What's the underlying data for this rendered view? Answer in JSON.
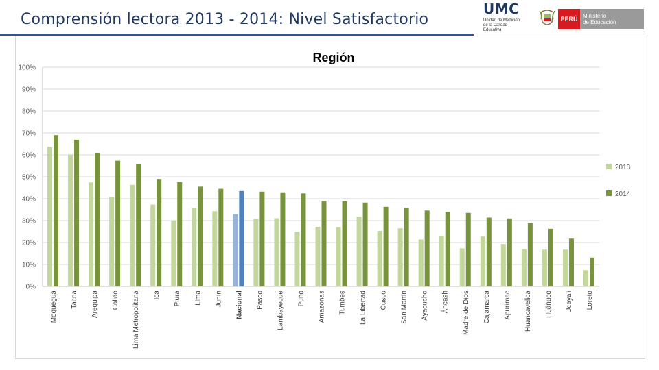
{
  "slide": {
    "title": "Comprensión lectora 2013 - 2014: Nivel Satisfactorio"
  },
  "logos": {
    "umc_word": "UMC",
    "umc_sub_lines": [
      "Unidad de Medición",
      "de la Calidad Educativa"
    ],
    "peru_label": "PERÚ",
    "ministry_lines": [
      "Ministerio",
      "de Educación"
    ]
  },
  "colors": {
    "title": "#1f3864",
    "s2013": "#c3d69b",
    "s2014": "#77933c",
    "nac2013": "#95b3d7",
    "nac2014": "#4f81bd",
    "grid": "#d9d9d9",
    "peru_red": "#d71920"
  },
  "chart_data": {
    "type": "bar",
    "title": "Región",
    "xlabel": "",
    "ylabel": "",
    "ylim": [
      0,
      100
    ],
    "y_ticks": [
      "0%",
      "10%",
      "20%",
      "30%",
      "40%",
      "50%",
      "60%",
      "70%",
      "80%",
      "90%",
      "100%"
    ],
    "grid": true,
    "legend_position": "right",
    "highlight_category": "Nacional",
    "categories": [
      "Moquegua",
      "Tacna",
      "Arequipa",
      "Callao",
      "Lima Metropolitana",
      "Ica",
      "Piura",
      "Lima",
      "Junín",
      "Nacional",
      "Pasco",
      "Lambayeque",
      "Puno",
      "Amazonas",
      "Tumbes",
      "La Libertad",
      "Cusco",
      "San Martín",
      "Ayacucho",
      "Áncash",
      "Madre de Dios",
      "Cajamarca",
      "Apurímac",
      "Huancavelica",
      "Huánuco",
      "Ucayali",
      "Loreto"
    ],
    "series": [
      {
        "name": "2013",
        "values": [
          63.7,
          60.1,
          47.4,
          40.8,
          46.3,
          37.3,
          30.1,
          35.8,
          34.3,
          33.0,
          30.9,
          31.1,
          24.9,
          27.2,
          27.0,
          31.9,
          25.3,
          26.5,
          21.4,
          23.1,
          17.4,
          22.9,
          19.3,
          17.0,
          16.8,
          16.8,
          7.4
        ]
      },
      {
        "name": "2014",
        "values": [
          69.0,
          66.9,
          60.7,
          57.3,
          55.7,
          49.0,
          47.6,
          45.5,
          44.5,
          43.5,
          43.2,
          42.9,
          42.4,
          39.0,
          38.8,
          38.2,
          36.3,
          35.9,
          34.6,
          34.0,
          33.5,
          31.4,
          31.0,
          28.9,
          26.3,
          21.8,
          13.2
        ]
      }
    ]
  }
}
